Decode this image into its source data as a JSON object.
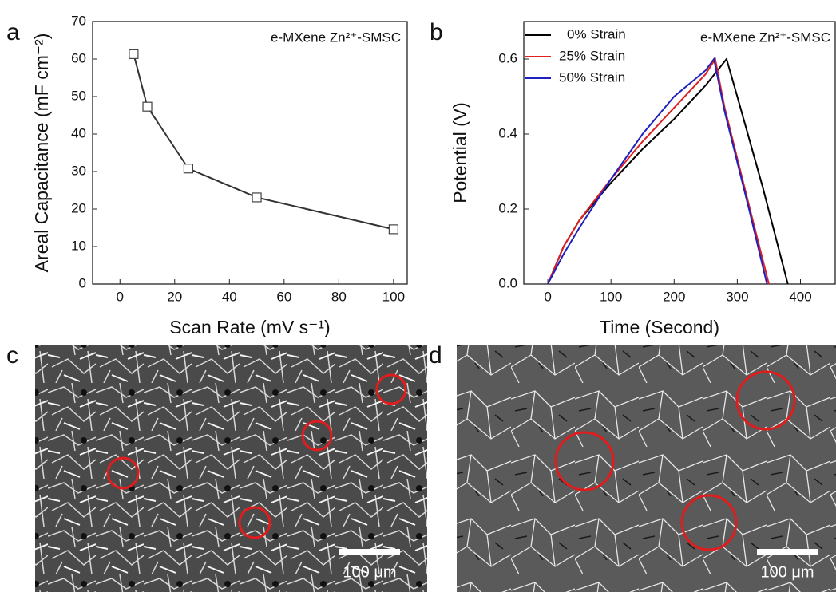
{
  "chart_data": [
    {
      "type": "line",
      "panel_label": "a",
      "title": "e-MXene Zn²⁺-SMSC",
      "x_label": "Scan Rate (mV s⁻¹)",
      "y_label": "Areal Capacitance (mF cm⁻²)",
      "x": [
        5,
        10,
        25,
        50,
        100
      ],
      "values": [
        61.3,
        47.3,
        30.8,
        23.1,
        14.6
      ],
      "color": "#333333",
      "marker": "square",
      "xlim": [
        -10,
        105
      ],
      "xticks": [
        0,
        20,
        40,
        60,
        80,
        100
      ],
      "ylim": [
        0,
        70
      ],
      "yticks": [
        0,
        10,
        20,
        30,
        40,
        50,
        60,
        70
      ]
    },
    {
      "type": "line",
      "panel_label": "b",
      "title": "e-MXene Zn²⁺-SMSC",
      "x_label": "Time (Second)",
      "y_label": "Potential (V)",
      "legend": "upper left",
      "series": [
        {
          "name": "0% Strain",
          "color": "#000000",
          "x": [
            0,
            25,
            50,
            100,
            150,
            200,
            250,
            283,
            300,
            340,
            380
          ],
          "values": [
            0,
            0.1,
            0.17,
            0.27,
            0.36,
            0.44,
            0.53,
            0.6,
            0.5,
            0.26,
            0
          ]
        },
        {
          "name": "25% Strain",
          "color": "#e02020",
          "x": [
            0,
            25,
            50,
            100,
            150,
            200,
            250,
            265,
            280,
            320,
            350
          ],
          "values": [
            0,
            0.1,
            0.17,
            0.28,
            0.38,
            0.47,
            0.56,
            0.6,
            0.47,
            0.2,
            0
          ]
        },
        {
          "name": "50% Strain",
          "color": "#2020c0",
          "x": [
            0,
            25,
            50,
            100,
            150,
            200,
            250,
            263,
            280,
            320,
            347
          ],
          "values": [
            0,
            0.08,
            0.15,
            0.28,
            0.4,
            0.5,
            0.57,
            0.6,
            0.46,
            0.19,
            0
          ]
        }
      ],
      "xlim": [
        -38,
        455
      ],
      "xticks": [
        0,
        100,
        200,
        300,
        400
      ],
      "ylim": [
        0,
        0.7
      ],
      "yticks": [
        {
          "value": 0,
          "label": "0.0"
        },
        0.2,
        0.4,
        0.6
      ]
    }
  ],
  "images": [
    {
      "label": "c",
      "scale_bar": "100 μm"
    },
    {
      "label": "d",
      "scale_bar": "100 μm"
    }
  ]
}
